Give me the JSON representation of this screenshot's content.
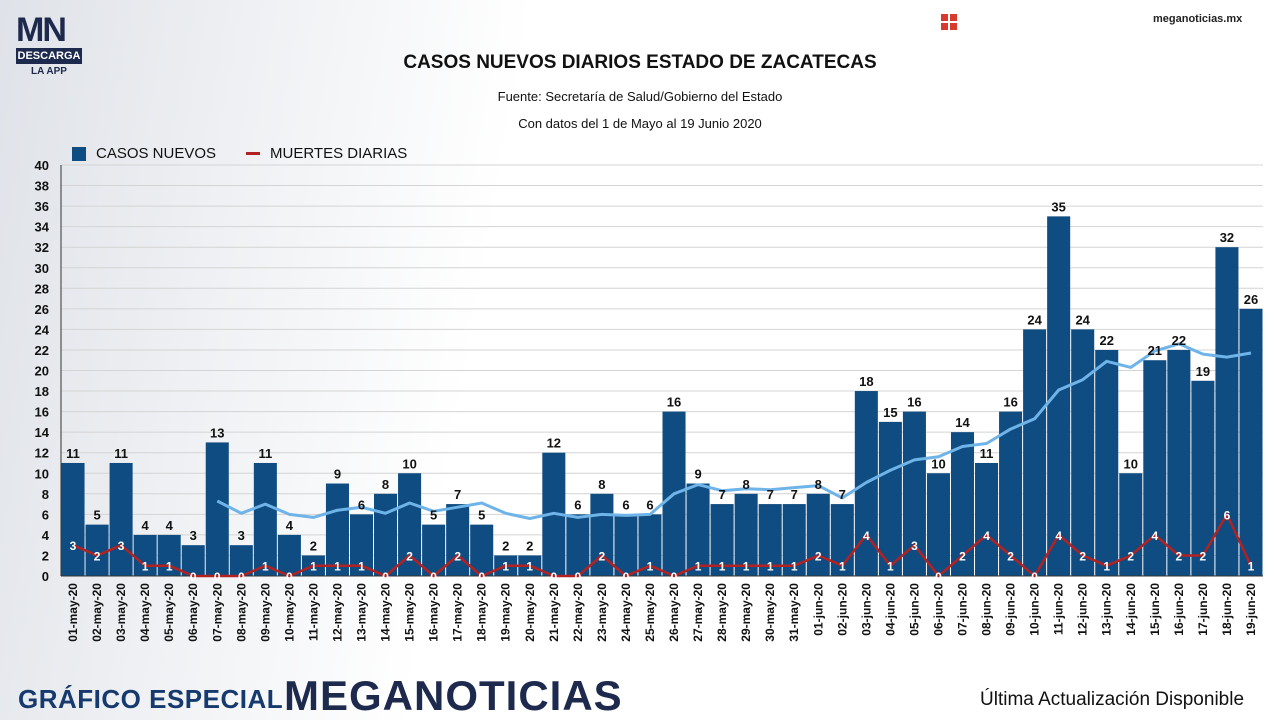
{
  "header": {
    "logo_text": "MN",
    "logo_download": "DESCARGA",
    "logo_app": "LA APP",
    "site": "meganoticias.mx"
  },
  "footer": {
    "left": "GRÁFICO ESPECIAL",
    "brand": "MEGANOTICIAS",
    "right": "Última Actualización Disponible"
  },
  "colors": {
    "bars": "#0f4c81",
    "deaths_line": "#b22222",
    "moving_average": "#6fb4e8"
  },
  "chart_data": {
    "type": "bar",
    "title": "CASOS NUEVOS DIARIOS ESTADO DE ZACATECAS",
    "subtitle1": "Fuente: Secretaría de Salud/Gobierno del Estado",
    "subtitle2": "Con datos del 1 de Mayo al 19 Junio 2020",
    "ylim": [
      0,
      40
    ],
    "yticks": [
      0,
      2,
      4,
      6,
      8,
      10,
      12,
      14,
      16,
      18,
      20,
      22,
      24,
      26,
      28,
      30,
      32,
      34,
      36,
      38,
      40
    ],
    "grid": true,
    "legend_position": "top-left",
    "categories": [
      "01-may-20",
      "02-may-20",
      "03-may-20",
      "04-may-20",
      "05-may-20",
      "06-may-20",
      "07-may-20",
      "08-may-20",
      "09-may-20",
      "10-may-20",
      "11-may-20",
      "12-may-20",
      "13-may-20",
      "14-may-20",
      "15-may-20",
      "16-may-20",
      "17-may-20",
      "18-may-20",
      "19-may-20",
      "20-may-20",
      "21-may-20",
      "22-may-20",
      "23-may-20",
      "24-may-20",
      "25-may-20",
      "26-may-20",
      "27-may-20",
      "28-may-20",
      "29-may-20",
      "30-may-20",
      "31-may-20",
      "01-jun-20",
      "02-jun-20",
      "03-jun-20",
      "04-jun-20",
      "05-jun-20",
      "06-jun-20",
      "07-jun-20",
      "08-jun-20",
      "09-jun-20",
      "10-jun-20",
      "11-jun-20",
      "12-jun-20",
      "13-jun-20",
      "14-jun-20",
      "15-jun-20",
      "16-jun-20",
      "17-jun-20",
      "18-jun-20",
      "19-jun-20"
    ],
    "series": [
      {
        "name": "CASOS NUEVOS",
        "type": "bar",
        "values": [
          11,
          5,
          11,
          4,
          4,
          3,
          13,
          3,
          11,
          4,
          2,
          9,
          6,
          8,
          10,
          5,
          7,
          5,
          2,
          2,
          12,
          6,
          8,
          6,
          6,
          16,
          9,
          7,
          8,
          7,
          7,
          8,
          7,
          18,
          15,
          16,
          10,
          14,
          11,
          16,
          24,
          35,
          24,
          22,
          10,
          21,
          22,
          19,
          32,
          26
        ]
      },
      {
        "name": "MUERTES DIARIAS",
        "type": "line",
        "values": [
          3,
          2,
          3,
          1,
          1,
          0,
          0,
          0,
          1,
          0,
          1,
          1,
          1,
          0,
          2,
          0,
          2,
          0,
          1,
          1,
          0,
          0,
          2,
          0,
          1,
          0,
          1,
          1,
          1,
          1,
          1,
          2,
          1,
          4,
          1,
          3,
          0,
          2,
          4,
          2,
          0,
          4,
          2,
          1,
          2,
          4,
          2,
          2,
          6,
          1
        ]
      },
      {
        "type": "line",
        "values": [
          null,
          null,
          null,
          null,
          null,
          null,
          7.3,
          6.1,
          7.0,
          6.0,
          5.7,
          6.4,
          6.7,
          6.1,
          7.1,
          6.3,
          6.7,
          7.1,
          6.1,
          5.6,
          6.1,
          5.7,
          6.0,
          5.9,
          6.0,
          8.0,
          8.9,
          8.3,
          8.5,
          8.4,
          8.6,
          8.8,
          7.6,
          9.1,
          10.3,
          11.3,
          11.6,
          12.6,
          12.9,
          14.3,
          15.3,
          18.1,
          19.1,
          20.9,
          20.3,
          21.9,
          22.6,
          21.6,
          21.3,
          21.7
        ]
      }
    ]
  }
}
